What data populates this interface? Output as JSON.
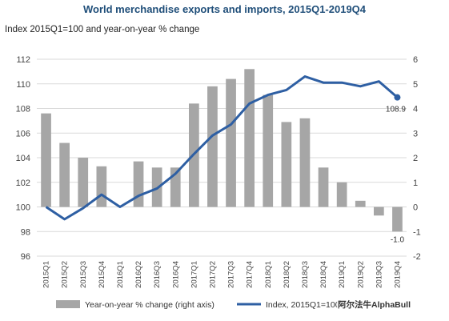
{
  "chart_data": {
    "type": "bar",
    "title": "World merchandise exports and imports, 2015Q1-2019Q4",
    "subtitle": "Index 2015Q1=100 and year-on-year % change",
    "categories": [
      "2015Q1",
      "2015Q2",
      "2015Q3",
      "2015Q4",
      "2016Q1",
      "2016Q2",
      "2016Q3",
      "2016Q4",
      "2017Q1",
      "2017Q2",
      "2017Q3",
      "2017Q4",
      "2018Q1",
      "2018Q2",
      "2018Q3",
      "2018Q4",
      "2019Q1",
      "2019Q2",
      "2019Q3",
      "2019Q4"
    ],
    "left_axis": {
      "ylim": [
        96,
        112
      ],
      "ticks": [
        "96",
        "98",
        "100",
        "102",
        "104",
        "106",
        "108",
        "110",
        "112"
      ]
    },
    "right_axis": {
      "ylim": [
        -2,
        6
      ],
      "ticks": [
        "-2",
        "-1",
        "0",
        "1",
        "2",
        "3",
        "4",
        "5",
        "6"
      ]
    },
    "grid": "horizontal",
    "legend_position": "bottom",
    "series": [
      {
        "name": "Year-on-year % change (right axis)",
        "type": "bar",
        "axis": "right",
        "color": "#a6a6a6",
        "values": [
          3.8,
          2.6,
          2.0,
          1.65,
          0.0,
          1.85,
          1.6,
          1.6,
          4.2,
          4.9,
          5.2,
          5.6,
          4.55,
          3.45,
          3.6,
          1.6,
          1.0,
          0.25,
          -0.35,
          -1.0
        ]
      },
      {
        "name": "Index, 2015Q1=100 (2cs)",
        "type": "line",
        "axis": "left",
        "color": "#2e5fa3",
        "values": [
          100.0,
          99.0,
          99.9,
          101.0,
          100.0,
          100.9,
          101.5,
          102.7,
          104.3,
          105.8,
          106.7,
          108.4,
          109.1,
          109.5,
          110.6,
          110.1,
          110.1,
          109.8,
          110.2,
          108.9
        ]
      }
    ],
    "data_labels": [
      {
        "series": 1,
        "index": 19,
        "text": "108.9"
      },
      {
        "series": 0,
        "index": 19,
        "text": "-1.0"
      }
    ]
  },
  "watermark": "阿尔法牛AlphaBull"
}
